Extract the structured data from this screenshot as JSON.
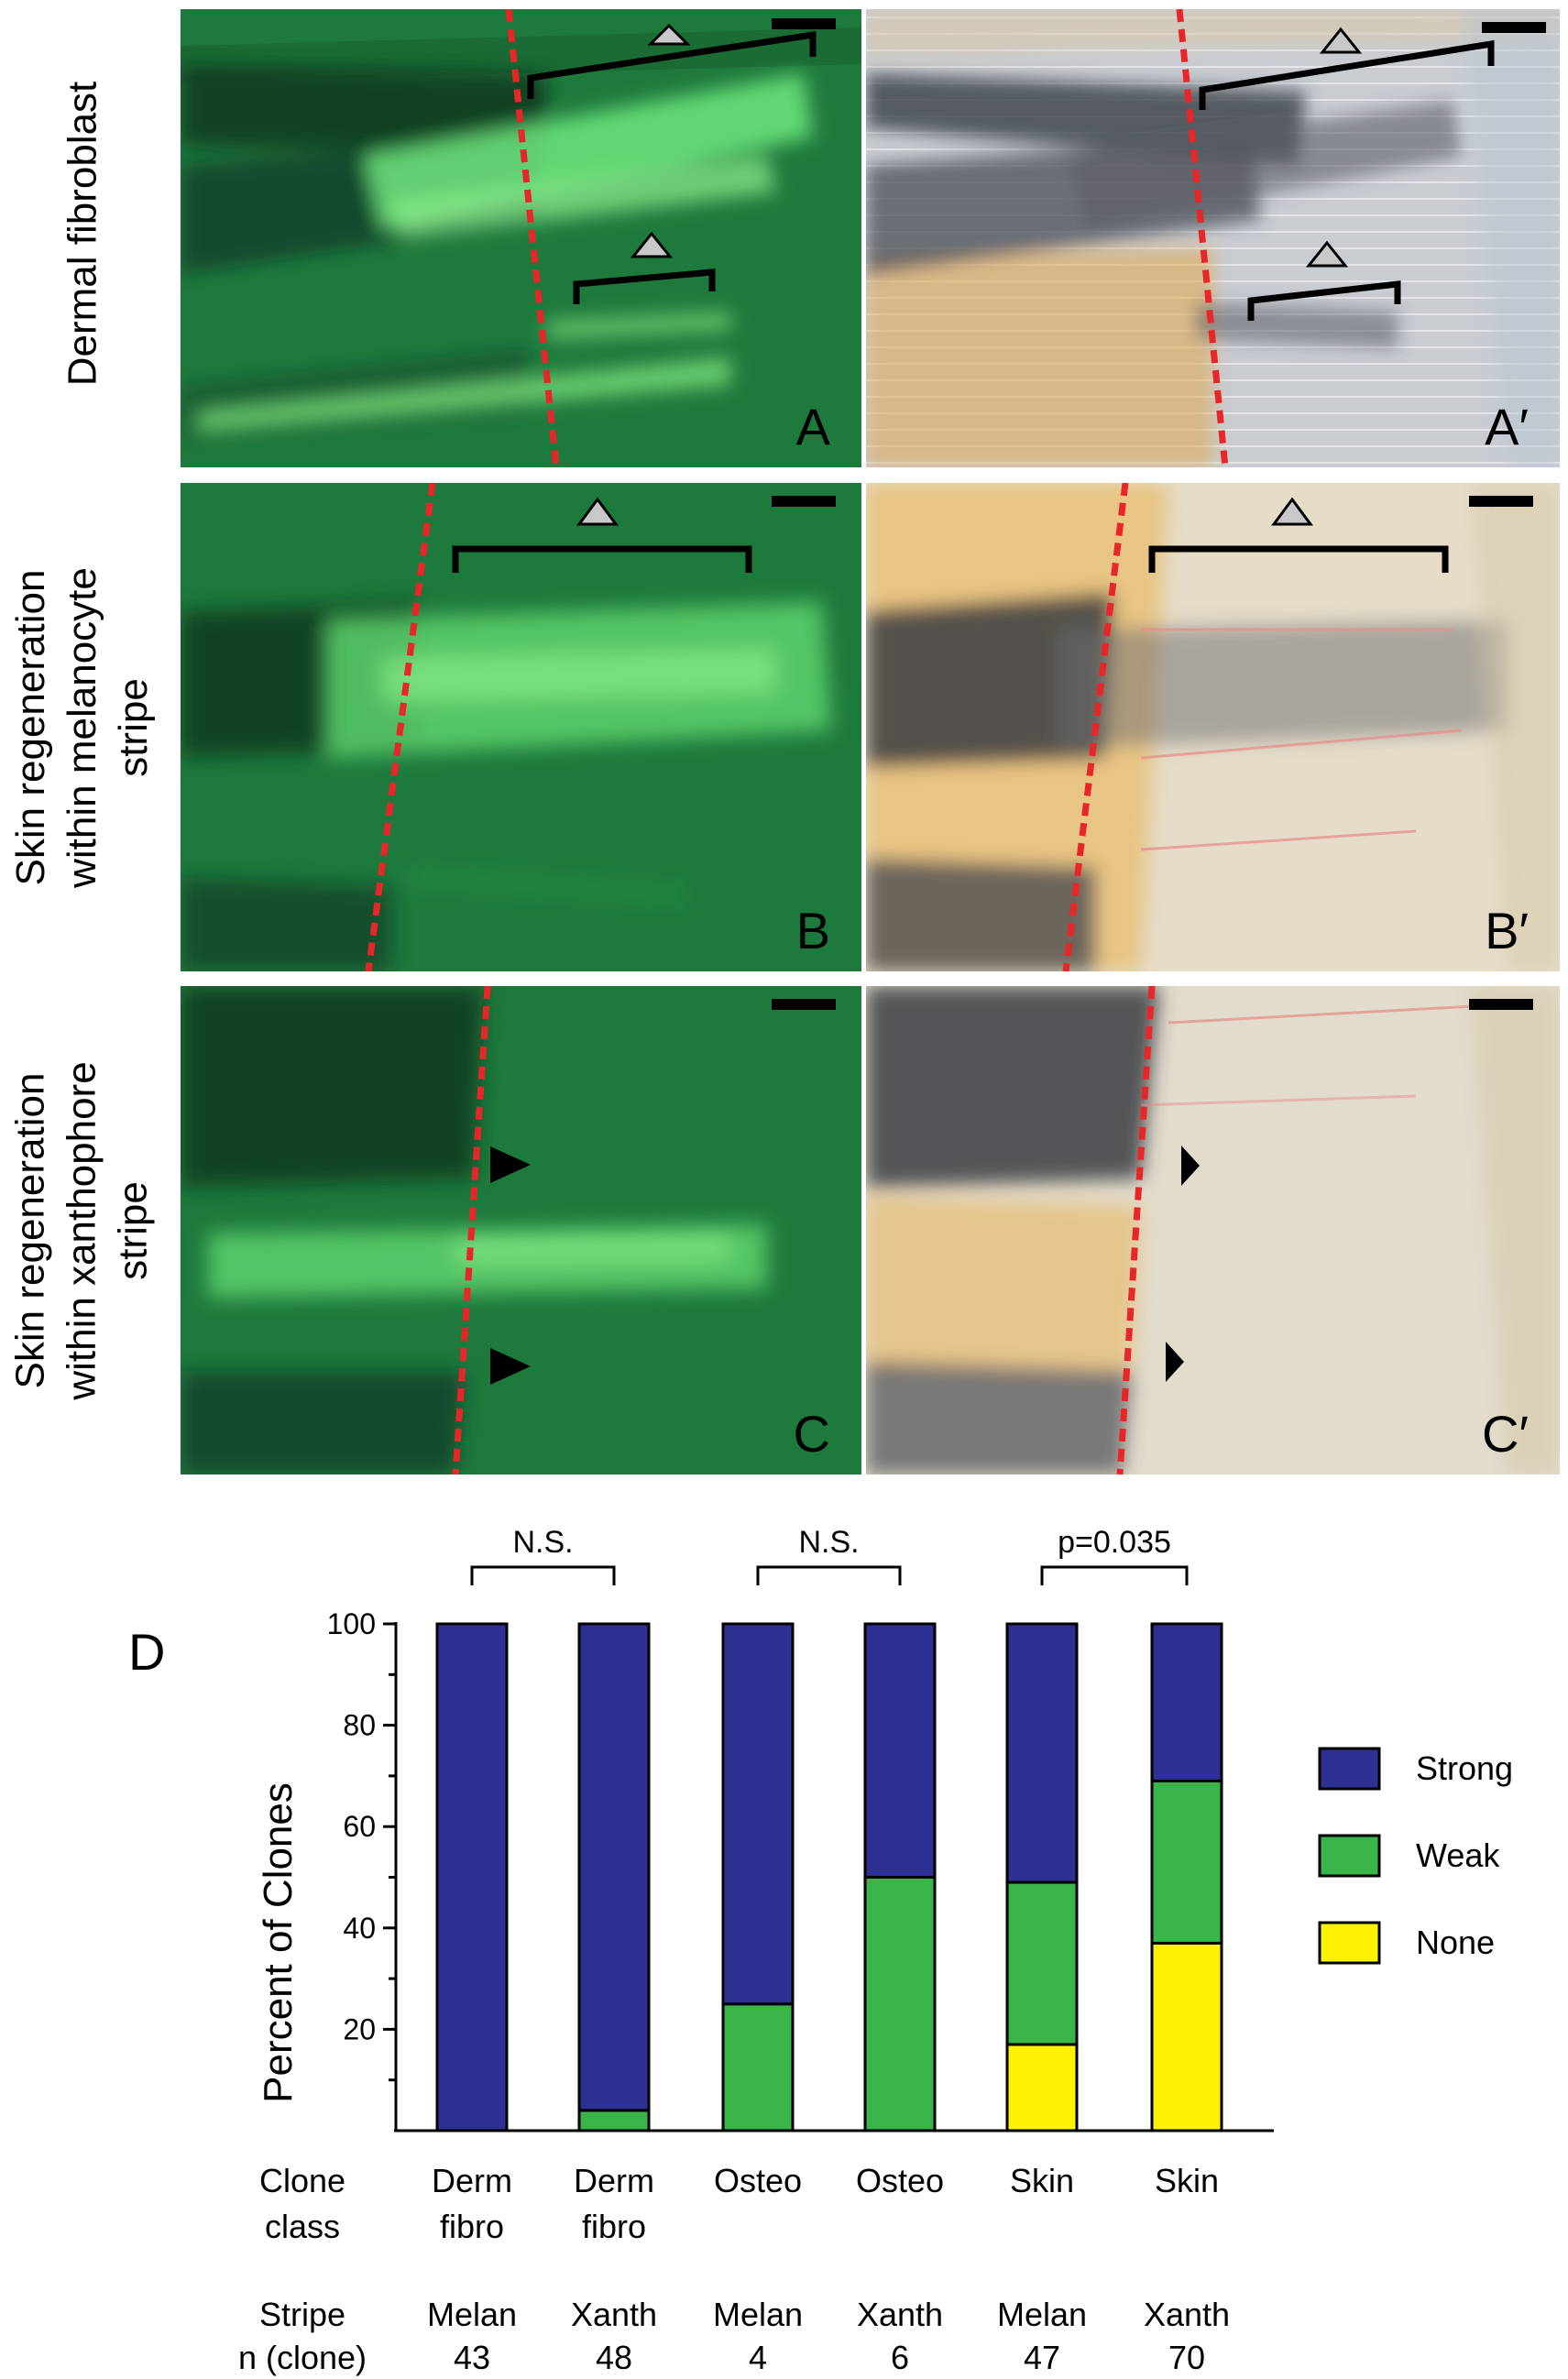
{
  "rows": [
    {
      "label_lines": [
        "Dermal fibroblast"
      ],
      "panels": [
        "A",
        "A′"
      ]
    },
    {
      "label_lines": [
        "Skin regeneration",
        "within melanocyte",
        "stripe"
      ],
      "panels": [
        "B",
        "B′"
      ]
    },
    {
      "label_lines": [
        "Skin regeneration",
        "within xanthophore",
        "stripe"
      ],
      "panels": [
        "C",
        "C′"
      ]
    }
  ],
  "panel_d_label": "D",
  "colors": {
    "strong": "#2e3192",
    "weak": "#39b54a",
    "none": "#fff200",
    "fluor_bg": "#1e7a3c",
    "cut_line": "#e8262a"
  },
  "chart_data": {
    "type": "bar",
    "stacked": true,
    "ylabel": "Percent of Clones",
    "ylim": [
      0,
      100
    ],
    "yticks": [
      20,
      40,
      60,
      80,
      100
    ],
    "categories": [
      "Derm fibro / Melan",
      "Derm fibro / Xanth",
      "Osteo / Melan",
      "Osteo / Xanth",
      "Skin / Melan",
      "Skin / Xanth"
    ],
    "clone_class": [
      [
        "Derm",
        "fibro"
      ],
      [
        "Derm",
        "fibro"
      ],
      [
        "Osteo"
      ],
      [
        "Osteo"
      ],
      [
        "Skin"
      ],
      [
        "Skin"
      ]
    ],
    "stripe": [
      "Melan",
      "Xanth",
      "Melan",
      "Xanth",
      "Melan",
      "Xanth"
    ],
    "n_clone": [
      "43",
      "48",
      "4",
      "6",
      "47",
      "70"
    ],
    "series": [
      {
        "name": "None",
        "values": [
          0,
          0,
          0,
          0,
          17,
          37
        ]
      },
      {
        "name": "Weak",
        "values": [
          0,
          4,
          25,
          50,
          32,
          32
        ]
      },
      {
        "name": "Strong",
        "values": [
          100,
          96,
          75,
          50,
          51,
          31
        ]
      }
    ],
    "legend_order": [
      "Strong",
      "Weak",
      "None"
    ],
    "legend_position": "right",
    "row_labels": {
      "clone_class": "Clone class",
      "clone_class_lines": [
        "Clone",
        "class"
      ],
      "stripe": "Stripe",
      "n": "n (clone)"
    },
    "comparisons": [
      {
        "pair": [
          0,
          1
        ],
        "label": "N.S."
      },
      {
        "pair": [
          2,
          3
        ],
        "label": "N.S."
      },
      {
        "pair": [
          4,
          5
        ],
        "label": "p=0.035"
      }
    ]
  }
}
